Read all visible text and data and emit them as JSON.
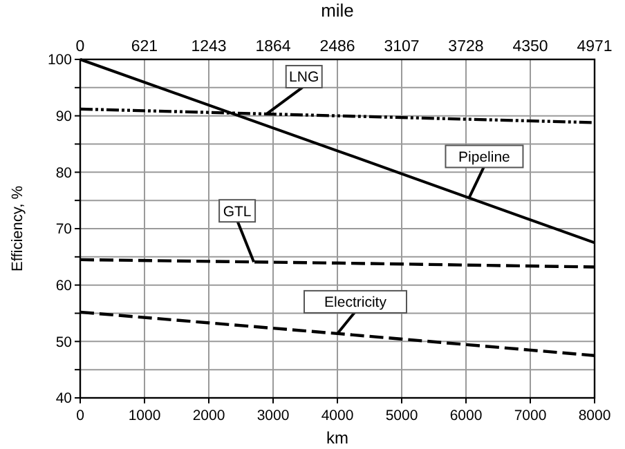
{
  "chart_data": {
    "type": "line",
    "xlabel": "km",
    "ylabel": "Efficiency, %",
    "x2label": "mile",
    "xlim": [
      0,
      8000
    ],
    "xticks": [
      0,
      1000,
      2000,
      3000,
      4000,
      5000,
      6000,
      7000,
      8000
    ],
    "x2lim": [
      0,
      4971
    ],
    "x2ticks": [
      0,
      621,
      1243,
      1864,
      2486,
      3107,
      3728,
      4350,
      4971
    ],
    "ylim": [
      40,
      100
    ],
    "yticks": [
      40,
      {
        "value": 45,
        "label": null
      },
      50,
      {
        "value": 55,
        "label": null
      },
      60,
      {
        "value": 65,
        "label": null
      },
      70,
      {
        "value": 75,
        "label": null
      },
      80,
      {
        "value": 85,
        "label": null
      },
      90,
      {
        "value": 95,
        "label": null
      },
      100
    ],
    "grid": true,
    "marker": "none",
    "x": [
      0,
      4000,
      8000
    ],
    "series": [
      {
        "name": "LNG",
        "color": "#000000",
        "line_style": "dotted",
        "values": [
          91.2,
          90,
          88.8
        ]
      },
      {
        "name": "Pipeline",
        "color": "#000000",
        "line_style": "solid",
        "values": [
          100,
          83.8,
          67.5
        ]
      },
      {
        "name": "GTL",
        "color": "#000000",
        "line_style": "dashed",
        "values": [
          64.5,
          63.9,
          63.2
        ]
      },
      {
        "name": "Electricity",
        "color": "#000000",
        "line_style": "dashed",
        "values": [
          55.2,
          51.4,
          47.5
        ]
      }
    ]
  }
}
